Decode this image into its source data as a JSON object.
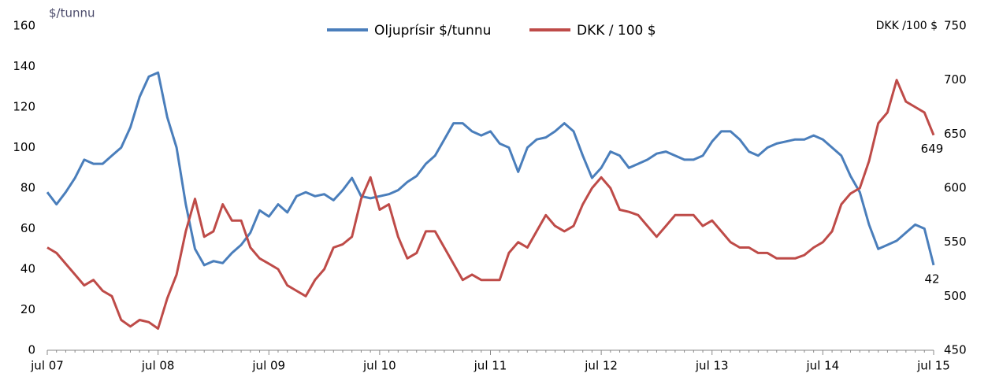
{
  "chart_data": {
    "type": "line",
    "y_label": "$/tunnu",
    "y2_label": "DKK /100 $",
    "categories": [
      "jul 07",
      null,
      null,
      null,
      null,
      null,
      null,
      null,
      null,
      null,
      null,
      null,
      "jul 08",
      null,
      null,
      null,
      null,
      null,
      null,
      null,
      null,
      null,
      null,
      null,
      "jul 09",
      null,
      null,
      null,
      null,
      null,
      null,
      null,
      null,
      null,
      null,
      null,
      "jul 10",
      null,
      null,
      null,
      null,
      null,
      null,
      null,
      null,
      null,
      null,
      null,
      "jul 11",
      null,
      null,
      null,
      null,
      null,
      null,
      null,
      null,
      null,
      null,
      null,
      "jul 12",
      null,
      null,
      null,
      null,
      null,
      null,
      null,
      null,
      null,
      null,
      null,
      "jul 13",
      null,
      null,
      null,
      null,
      null,
      null,
      null,
      null,
      null,
      null,
      null,
      "jul 14",
      null,
      null,
      null,
      null,
      null,
      null,
      null,
      null,
      null,
      null,
      null,
      "jul 15"
    ],
    "series": [
      {
        "name": "Oljuprísir $/tunnu",
        "color": "#4a7ebb",
        "axis": "y",
        "values": [
          78,
          72,
          78,
          85,
          94,
          92,
          92,
          96,
          100,
          110,
          125,
          135,
          137,
          115,
          100,
          72,
          50,
          42,
          44,
          43,
          48,
          52,
          58,
          69,
          66,
          72,
          68,
          76,
          78,
          76,
          77,
          74,
          79,
          85,
          76,
          75,
          76,
          77,
          79,
          83,
          86,
          92,
          96,
          104,
          112,
          112,
          108,
          106,
          108,
          102,
          100,
          88,
          100,
          104,
          105,
          108,
          112,
          108,
          96,
          85,
          90,
          98,
          96,
          90,
          92,
          94,
          97,
          98,
          96,
          94,
          94,
          96,
          103,
          108,
          108,
          104,
          98,
          96,
          100,
          102,
          103,
          104,
          104,
          106,
          104,
          100,
          96,
          86,
          78,
          62,
          50,
          52,
          54,
          58,
          62,
          60,
          42
        ]
      },
      {
        "name": "DKK /  100 $",
        "color": "#be4b48",
        "axis": "y2",
        "values": [
          545,
          540,
          530,
          520,
          510,
          515,
          505,
          500,
          478,
          472,
          478,
          476,
          470,
          498,
          520,
          560,
          590,
          555,
          560,
          585,
          570,
          570,
          545,
          535,
          530,
          525,
          510,
          505,
          500,
          515,
          525,
          545,
          548,
          555,
          590,
          610,
          580,
          585,
          555,
          535,
          540,
          560,
          560,
          545,
          530,
          515,
          520,
          515,
          515,
          515,
          540,
          550,
          545,
          560,
          575,
          565,
          560,
          565,
          585,
          600,
          610,
          600,
          580,
          578,
          575,
          565,
          555,
          565,
          575,
          575,
          575,
          565,
          570,
          560,
          550,
          545,
          545,
          540,
          540,
          535,
          535,
          535,
          538,
          545,
          550,
          560,
          585,
          595,
          600,
          625,
          660,
          670,
          700,
          680,
          675,
          670,
          649
        ]
      }
    ],
    "ylim": [
      0,
      160
    ],
    "yticks": [
      0,
      20,
      40,
      60,
      80,
      100,
      120,
      140,
      160
    ],
    "y2lim": [
      450,
      750
    ],
    "y2ticks": [
      450,
      500,
      550,
      600,
      650,
      700,
      750
    ],
    "grid": false,
    "legend": "top"
  }
}
